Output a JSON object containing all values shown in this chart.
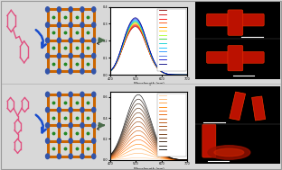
{
  "bg_color": "#d8d8d8",
  "panel_bg": "#ffffff",
  "row1_spectra": {
    "peak": 500,
    "ylim": [
      0.0,
      0.4
    ],
    "yticks": [
      0.0,
      0.1,
      0.2,
      0.3,
      0.4
    ],
    "ylabel": "Abs",
    "xlabel": "Wavelength (nm)",
    "colors": [
      "#8b0000",
      "#cc0000",
      "#ff0000",
      "#ff4500",
      "#ff8c00",
      "#ffd700",
      "#adff2f",
      "#32cd32",
      "#00ced1",
      "#00bfff",
      "#1e90ff",
      "#4169e1",
      "#0000cd",
      "#000080"
    ]
  },
  "row2_spectra": {
    "peak": 510,
    "ylim": [
      0.0,
      0.65
    ],
    "yticks": [
      0.0,
      0.2,
      0.4,
      0.6
    ],
    "ylabel": "Abs",
    "xlabel": "Wavelength (nm)",
    "colors": [
      "#ffd1a3",
      "#ffb366",
      "#ff9933",
      "#ff7f00",
      "#ff6600",
      "#e55c00",
      "#cc5200",
      "#b34700",
      "#993d00",
      "#7f3300",
      "#662b00",
      "#4b2000",
      "#2f1500",
      "#1a0a00",
      "#000000"
    ]
  },
  "arrow_blue": "#1a4dcc",
  "arrow_gray": "#4a6b4a",
  "mol_color": "#e05080",
  "mof_orange": "#cc6600",
  "mof_blue": "#3355aa",
  "mof_green": "#228822",
  "separator_color": "#bbbbbb"
}
